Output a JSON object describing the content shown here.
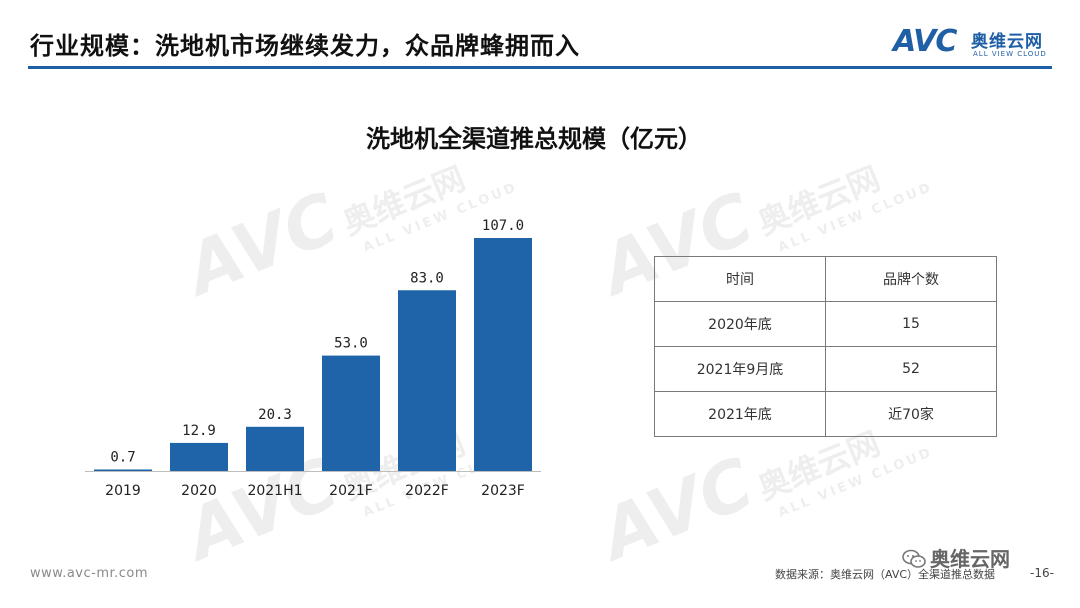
{
  "header": {
    "title": "行业规模：洗地机市场继续发力，众品牌蜂拥而入",
    "brand_logo": {
      "mark": "AVC",
      "name_cn": "奥维云网",
      "name_en": "ALL VIEW CLOUD"
    }
  },
  "watermark": {
    "mark": "AVC",
    "name_cn": "奥维云网",
    "name_en": "ALL VIEW CLOUD"
  },
  "chart_data": {
    "type": "bar",
    "title": "洗地机全渠道推总规模（亿元）",
    "categories": [
      "2019",
      "2020",
      "2021H1",
      "2021F",
      "2022F",
      "2023F"
    ],
    "values": [
      0.7,
      12.9,
      20.3,
      53.0,
      83.0,
      107.0
    ],
    "value_labels": [
      "0.7",
      "12.9",
      "20.3",
      "53.0",
      "83.0",
      "107.0"
    ],
    "xlabel": "",
    "ylabel": "",
    "ylim": [
      0,
      107
    ],
    "grid": false,
    "legend": "none",
    "bar_color": "#1f64a8"
  },
  "brand_table": {
    "headers": [
      "时间",
      "品牌个数"
    ],
    "rows": [
      [
        "2020年底",
        "15"
      ],
      [
        "2021年9月底",
        "52"
      ],
      [
        "2021年底",
        "近70家"
      ]
    ]
  },
  "footer": {
    "url": "www.avc-mr.com",
    "source": "数据来源：奥维云网（AVC）全渠道推总数据",
    "page": "-16-",
    "wechat": "奥维云网"
  },
  "colors": {
    "accent": "#1f5fa6",
    "bar": "#1f64a8"
  }
}
